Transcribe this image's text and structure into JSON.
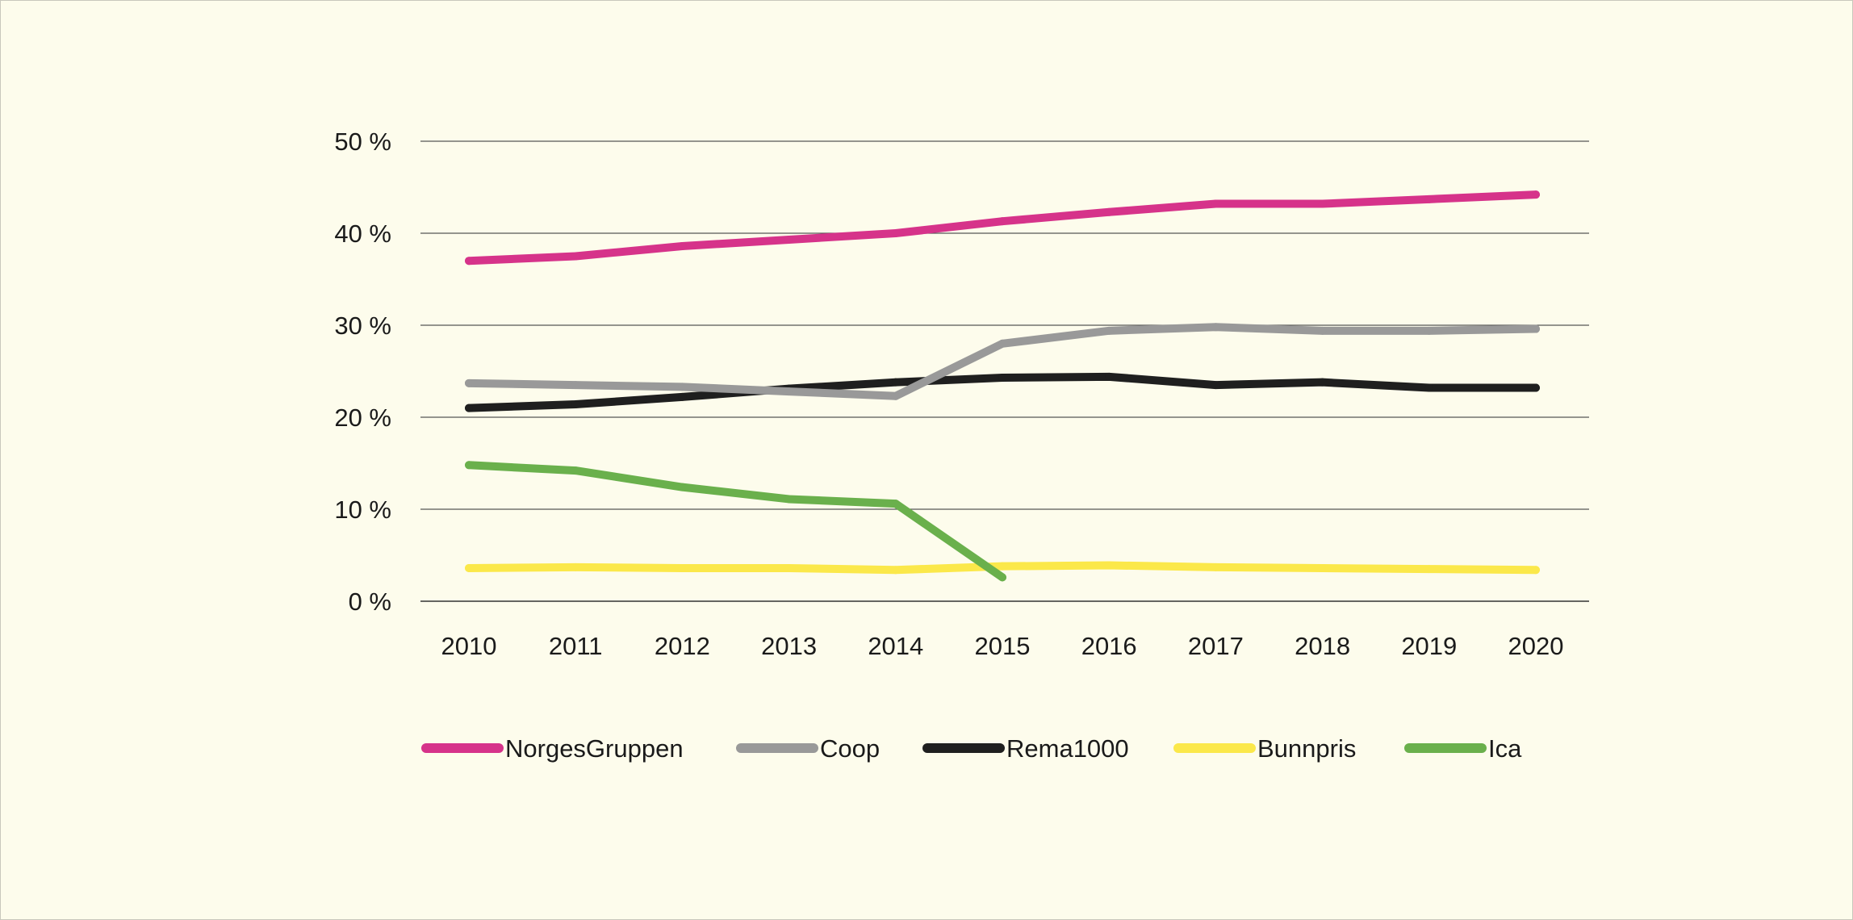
{
  "chart_data": {
    "type": "line",
    "title": "",
    "xlabel": "",
    "ylabel": "",
    "categories": [
      "2010",
      "2011",
      "2012",
      "2013",
      "2014",
      "2015",
      "2016",
      "2017",
      "2018",
      "2019",
      "2020"
    ],
    "y_ticks": [
      "0 %",
      "10 %",
      "20 %",
      "30 %",
      "40 %",
      "50 %"
    ],
    "ylim": [
      0,
      50
    ],
    "grid": "horizontal",
    "legend_position": "bottom",
    "series": [
      {
        "name": "NorgesGruppen",
        "color": "#d6338a",
        "values": [
          37.0,
          37.5,
          38.6,
          39.3,
          40.0,
          41.3,
          42.3,
          43.2,
          43.2,
          43.7,
          44.2
        ]
      },
      {
        "name": "Coop",
        "color": "#999999",
        "values": [
          23.7,
          23.5,
          23.3,
          22.8,
          22.3,
          28.0,
          29.4,
          29.8,
          29.4,
          29.4,
          29.6
        ]
      },
      {
        "name": "Rema1000",
        "color": "#1f1f1f",
        "values": [
          21.0,
          21.4,
          22.2,
          23.1,
          23.8,
          24.3,
          24.4,
          23.5,
          23.8,
          23.2,
          23.2
        ]
      },
      {
        "name": "Bunnpris",
        "color": "#fbe84a",
        "values": [
          3.6,
          3.7,
          3.6,
          3.6,
          3.4,
          3.8,
          3.9,
          3.7,
          3.6,
          3.5,
          3.4
        ]
      },
      {
        "name": "Ica",
        "color": "#6ab04c",
        "values": [
          14.8,
          14.2,
          12.4,
          11.1,
          10.6,
          2.6,
          null,
          null,
          null,
          null,
          null
        ]
      }
    ]
  }
}
